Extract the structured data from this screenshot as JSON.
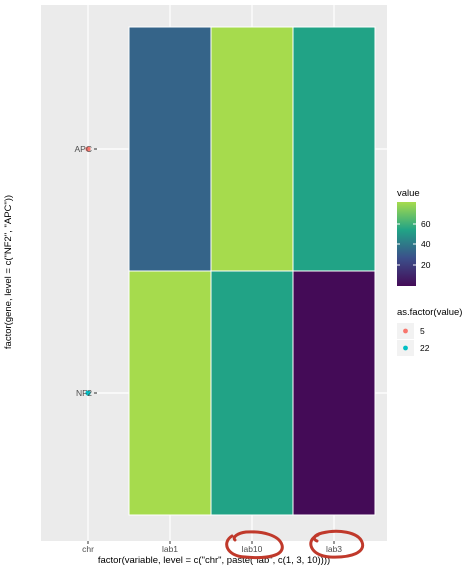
{
  "chart_data": {
    "type": "heatmap",
    "xlabel": "factor(variable, level = c(\"chr\", paste(\"lab\", c(1, 3, 10))))",
    "ylabel": "factor(gene, level = c(\"NF2\", \"APC\"))",
    "x_categories": [
      "chr",
      "lab1",
      "lab10",
      "lab3"
    ],
    "y_categories": [
      "NF2",
      "APC"
    ],
    "tiles": [
      {
        "x": "lab1",
        "y": "APC",
        "value": 30
      },
      {
        "x": "lab10",
        "y": "APC",
        "value": 65
      },
      {
        "x": "lab3",
        "y": "APC",
        "value": 45
      },
      {
        "x": "lab1",
        "y": "NF2",
        "value": 65
      },
      {
        "x": "lab10",
        "y": "NF2",
        "value": 45
      },
      {
        "x": "lab3",
        "y": "NF2",
        "value": 5
      }
    ],
    "points": [
      {
        "x": "chr",
        "y": "APC",
        "value": 5,
        "color": "#F8766D"
      },
      {
        "x": "chr",
        "y": "NF2",
        "value": 22,
        "color": "#00BFC4"
      }
    ],
    "fill_legend": {
      "title": "value",
      "breaks": [
        60,
        40,
        20
      ],
      "colors": [
        "#A6DB4D",
        "#21A386",
        "#3B4F8A",
        "#440B57"
      ]
    },
    "color_legend": {
      "title": "as.factor(value)",
      "entries": [
        {
          "label": "5",
          "color": "#F8766D"
        },
        {
          "label": "22",
          "color": "#00BFC4"
        }
      ]
    },
    "annotations": "red hand-drawn circles around lab10 and lab3 tick labels",
    "grid": true,
    "legend_position": "right",
    "colors": {
      "panel_bg": "#EBEBEB",
      "grid": "#FFFFFF",
      "axis_text": "#4D4D4D",
      "annotation": "#C0392B"
    }
  }
}
